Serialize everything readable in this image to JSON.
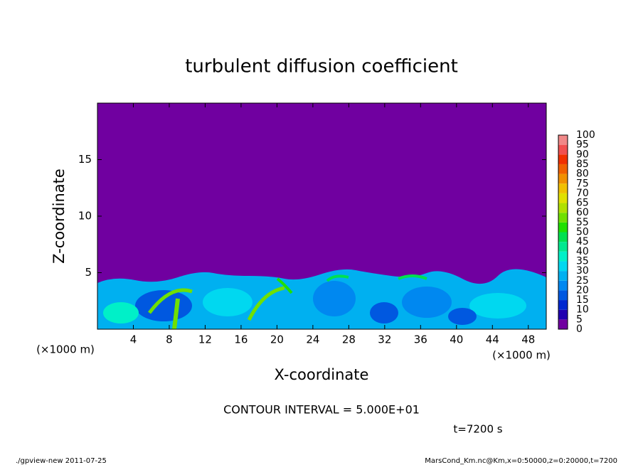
{
  "chart_data": {
    "type": "contour",
    "title": "turbulent diffusion coefficient",
    "x_label": "X-coordinate",
    "y_label": "Z-coordinate",
    "x_unit_label": "(×1000 m)",
    "xlim": [
      0,
      50
    ],
    "xticks": [
      4,
      8,
      12,
      16,
      20,
      24,
      28,
      32,
      36,
      40,
      44,
      48
    ],
    "ylim": [
      0,
      20
    ],
    "yticks": [
      5,
      10,
      15
    ],
    "colorbar": {
      "levels": [
        0,
        5,
        10,
        15,
        20,
        25,
        30,
        35,
        40,
        45,
        50,
        55,
        60,
        65,
        70,
        75,
        80,
        85,
        90,
        95,
        100
      ],
      "colors": [
        "#7000a0",
        "#2000b0",
        "#0028d0",
        "#0058e0",
        "#0088f0",
        "#00b0f0",
        "#00d8f0",
        "#00f0c8",
        "#00e890",
        "#00e050",
        "#20e000",
        "#70e000",
        "#b0e000",
        "#e0e000",
        "#f0c000",
        "#f09000",
        "#f06000",
        "#f03000",
        "#f05050",
        "#f08888"
      ]
    },
    "contour_interval": "CONTOUR INTERVAL = 5.000E+01",
    "time_label": "t=7200 s",
    "footer_left": "./gpview-new  2011-07-25",
    "footer_right": "MarsCond_Km.nc@Km,x=0:50000,z=0:20000,t=7200"
  }
}
